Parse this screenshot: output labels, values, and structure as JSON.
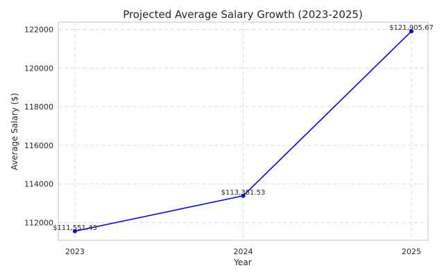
{
  "chart_data": {
    "type": "line",
    "title": "Projected Average Salary Growth (2023-2025)",
    "xlabel": "Year",
    "ylabel": "Average Salary ($)",
    "categories": [
      "2023",
      "2024",
      "2025"
    ],
    "series": [
      {
        "name": "Average Salary",
        "values": [
          111551.43,
          113381.53,
          121905.67
        ],
        "value_labels": [
          "$111,551.43",
          "$113,381.53",
          "$121,905.67"
        ],
        "color": "#0000ff"
      }
    ],
    "yticks": [
      112000,
      114000,
      116000,
      118000,
      120000,
      122000
    ],
    "ytick_labels": [
      "112000",
      "114000",
      "116000",
      "118000",
      "120000",
      "122000"
    ],
    "ylim": [
      111078.7,
      122378.4
    ],
    "grid": true,
    "legend": "none"
  }
}
